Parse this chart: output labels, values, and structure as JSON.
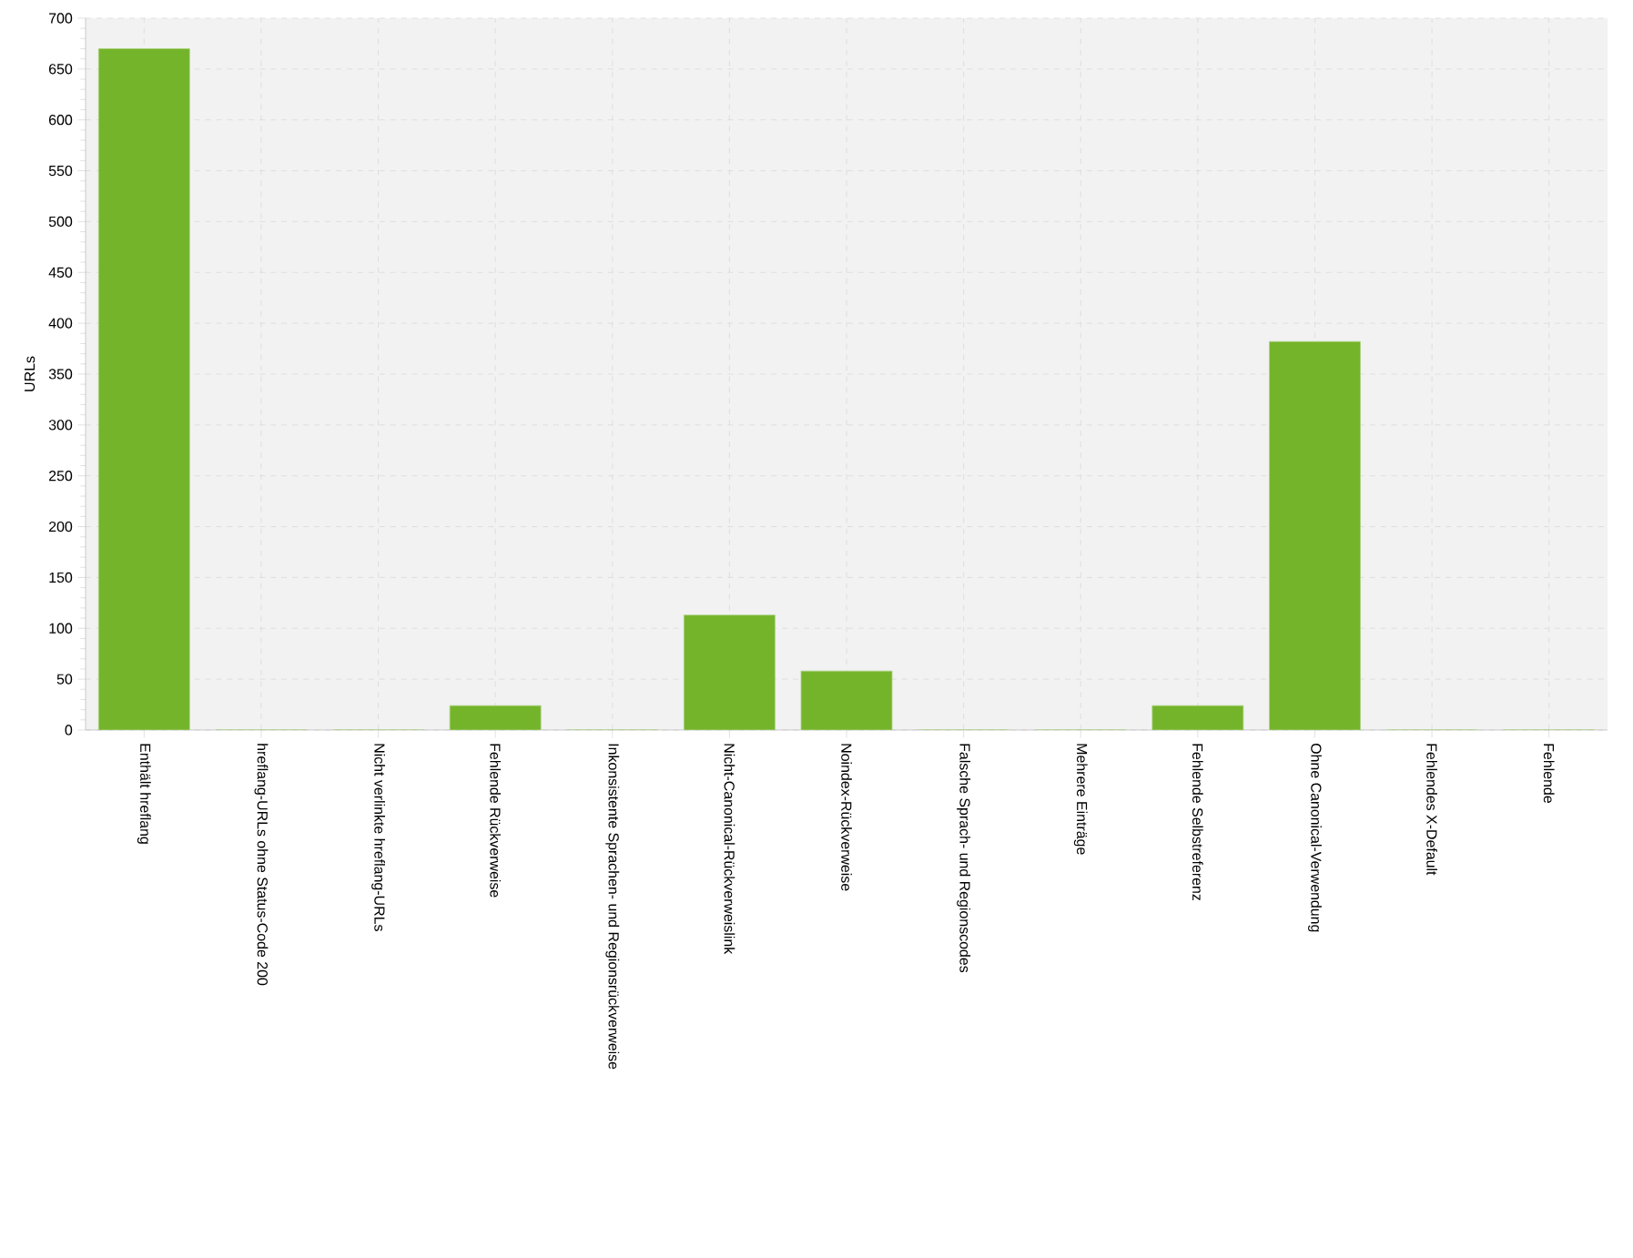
{
  "chart_data": {
    "type": "bar",
    "ylabel": "URLs",
    "categories": [
      "Enthält hreflang",
      "hreflang-URLs ohne Status-Code 200",
      "Nicht verlinkte hreflang-URLs",
      "Fehlende Rückverweise",
      "Inkonsistente Sprachen- und Regionsrückverweise",
      "Nicht-Canonical-Rückverweislink",
      "Noindex-Rückverweise",
      "Falsche Sprach- und Regionscodes",
      "Mehrere Einträge",
      "Fehlende Selbstreferenz",
      "Ohne Canonical-Verwendung",
      "Fehlendes X-Default",
      "Fehlende"
    ],
    "values": [
      670,
      0,
      0,
      24,
      0,
      113,
      58,
      0,
      0,
      24,
      382,
      0,
      0
    ],
    "color": "#74b42b",
    "ylim": [
      0,
      700
    ],
    "yticks": [
      0,
      50,
      100,
      150,
      200,
      250,
      300,
      350,
      400,
      450,
      500,
      550,
      600,
      650,
      700
    ],
    "grid": true
  }
}
